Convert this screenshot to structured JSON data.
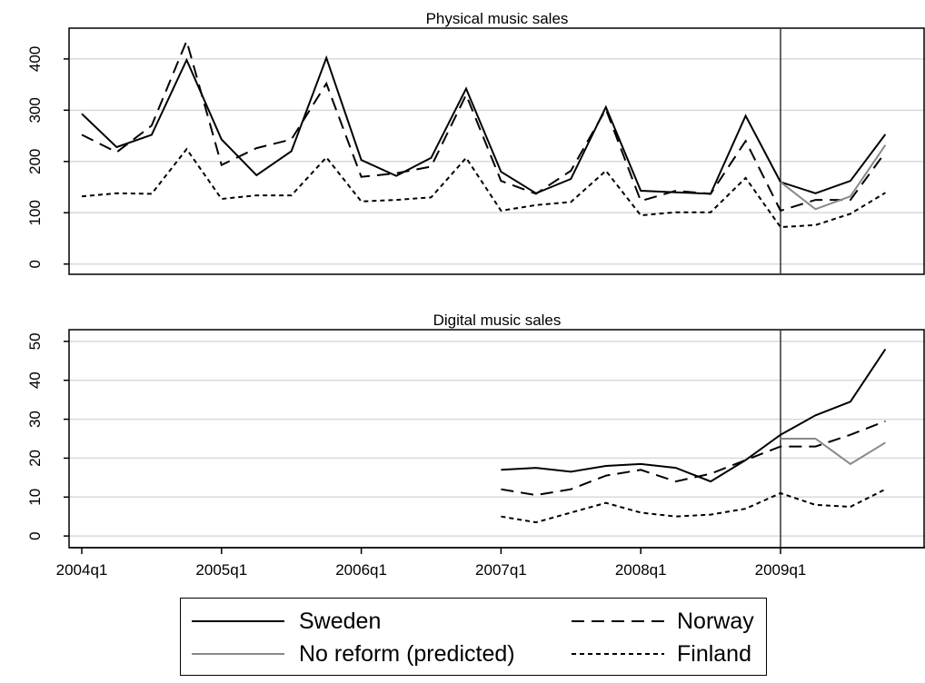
{
  "colors": {
    "sweden": "#000000",
    "norway": "#000000",
    "finland": "#000000",
    "predicted": "#888888",
    "grid": "#d9d9d9"
  },
  "legend": {
    "sweden": "Sweden",
    "norway": "Norway",
    "predicted": "No reform (predicted)",
    "finland": "Finland"
  },
  "reform_line_x": "2009q1",
  "chart_data": [
    {
      "type": "line",
      "title": "Physical music sales",
      "xlabel": "",
      "ylabel": "",
      "ylim": [
        -20,
        460
      ],
      "yticks": [
        0,
        100,
        200,
        300,
        400
      ],
      "grid": true,
      "x": [
        "2004q1",
        "2004q2",
        "2004q3",
        "2004q4",
        "2005q1",
        "2005q2",
        "2005q3",
        "2005q4",
        "2006q1",
        "2006q2",
        "2006q3",
        "2006q4",
        "2007q1",
        "2007q2",
        "2007q3",
        "2007q4",
        "2008q1",
        "2008q2",
        "2008q3",
        "2008q4",
        "2009q1",
        "2009q2",
        "2009q3",
        "2009q4"
      ],
      "series": [
        {
          "name": "Sweden",
          "style": "solid",
          "values": [
            293,
            228,
            252,
            398,
            243,
            173,
            220,
            402,
            203,
            172,
            207,
            342,
            180,
            138,
            166,
            306,
            143,
            140,
            137,
            289,
            160,
            138,
            162,
            253
          ]
        },
        {
          "name": "Norway",
          "style": "dashed",
          "values": [
            252,
            218,
            270,
            435,
            193,
            226,
            243,
            352,
            170,
            177,
            190,
            330,
            162,
            137,
            182,
            302,
            123,
            143,
            137,
            240,
            104,
            125,
            125,
            218
          ]
        },
        {
          "name": "Finland",
          "style": "dotted",
          "values": [
            132,
            138,
            137,
            224,
            127,
            134,
            134,
            208,
            122,
            125,
            130,
            207,
            104,
            115,
            121,
            182,
            95,
            101,
            101,
            168,
            72,
            76,
            98,
            139
          ]
        },
        {
          "name": "No reform (predicted)",
          "style": "solid-gray",
          "x": [
            "2009q1",
            "2009q2",
            "2009q3",
            "2009q4"
          ],
          "values": [
            160,
            107,
            132,
            232
          ]
        }
      ]
    },
    {
      "type": "line",
      "title": "Digital music sales",
      "xlabel": "",
      "ylabel": "",
      "ylim": [
        -3,
        53
      ],
      "yticks": [
        0,
        10,
        20,
        30,
        40,
        50
      ],
      "xticks": [
        "2004q1",
        "2005q1",
        "2006q1",
        "2007q1",
        "2008q1",
        "2009q1"
      ],
      "grid": true,
      "x": [
        "2007q1",
        "2007q2",
        "2007q3",
        "2007q4",
        "2008q1",
        "2008q2",
        "2008q3",
        "2008q4",
        "2009q1",
        "2009q2",
        "2009q3",
        "2009q4"
      ],
      "series": [
        {
          "name": "Sweden",
          "style": "solid",
          "values": [
            17,
            17.5,
            16.5,
            18,
            18.5,
            17.5,
            14,
            19.5,
            26,
            31,
            34.5,
            48
          ]
        },
        {
          "name": "Norway",
          "style": "dashed",
          "values": [
            12,
            10.5,
            12,
            15.5,
            17,
            14,
            16,
            19.5,
            23,
            23,
            26,
            29.5
          ]
        },
        {
          "name": "Finland",
          "style": "dotted",
          "values": [
            5,
            3.5,
            6,
            8.5,
            6,
            5,
            5.5,
            7,
            11,
            8,
            7.5,
            12
          ]
        },
        {
          "name": "No reform (predicted)",
          "style": "solid-gray",
          "x": [
            "2009q1",
            "2009q2",
            "2009q3",
            "2009q4"
          ],
          "values": [
            25,
            25,
            18.5,
            24
          ]
        }
      ]
    }
  ]
}
